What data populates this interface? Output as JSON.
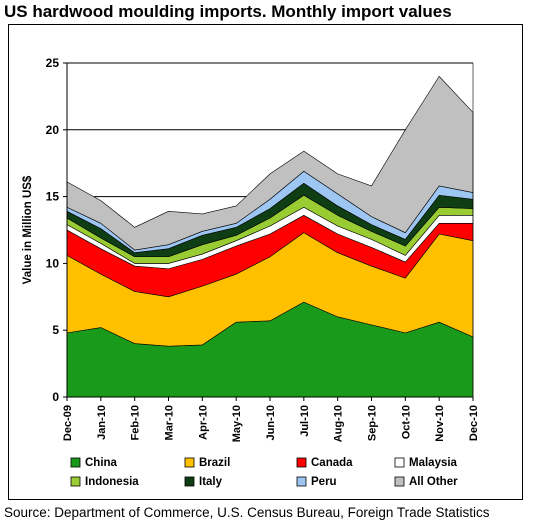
{
  "title": "US hardwood moulding imports. Monthly import values",
  "source": "Source: Department of Commerce, U.S. Census Bureau, Foreign Trade Statistics",
  "chart_data": {
    "type": "area",
    "stacked": true,
    "ylabel": "Value in Million US$",
    "xlabel": "",
    "ylim": [
      0,
      25
    ],
    "yticks": [
      0,
      5,
      10,
      15,
      20,
      25
    ],
    "grid": "horizontal major lines",
    "legend_position": "bottom",
    "categories": [
      "Dec-09",
      "Jan-10",
      "Feb-10",
      "Mar-10",
      "Apr-10",
      "May-10",
      "Jun-10",
      "Jul-10",
      "Aug-10",
      "Sep-10",
      "Oct-10",
      "Nov-10",
      "Dec-10"
    ],
    "series": [
      {
        "name": "China",
        "color": "#1a9a1a",
        "values": [
          4.8,
          5.2,
          4.0,
          3.8,
          3.9,
          5.6,
          5.7,
          7.1,
          6.0,
          5.4,
          4.8,
          5.6,
          4.5
        ]
      },
      {
        "name": "Brazil",
        "color": "#ffc000",
        "values": [
          5.8,
          4.0,
          3.9,
          3.7,
          4.4,
          3.6,
          4.8,
          5.2,
          4.8,
          4.4,
          4.1,
          6.6,
          7.2
        ]
      },
      {
        "name": "Canada",
        "color": "#ff0000",
        "values": [
          1.9,
          1.9,
          1.9,
          2.1,
          2.0,
          2.1,
          1.7,
          1.3,
          1.4,
          1.4,
          1.2,
          0.8,
          1.3
        ]
      },
      {
        "name": "Malaysia",
        "color": "#ffffff",
        "values": [
          0.4,
          0.4,
          0.2,
          0.4,
          0.4,
          0.4,
          0.6,
          0.6,
          0.6,
          0.6,
          0.5,
          0.6,
          0.6
        ]
      },
      {
        "name": "Indonesia",
        "color": "#99cc33",
        "values": [
          0.5,
          0.4,
          0.5,
          0.5,
          0.7,
          0.4,
          0.6,
          0.9,
          0.8,
          0.6,
          0.7,
          0.6,
          0.5
        ]
      },
      {
        "name": "Italy",
        "color": "#0f3d14",
        "values": [
          0.5,
          0.7,
          0.3,
          0.6,
          0.7,
          0.6,
          0.7,
          0.9,
          0.7,
          0.5,
          0.5,
          0.9,
          0.7
        ]
      },
      {
        "name": "Peru",
        "color": "#9ec6f2",
        "values": [
          0.3,
          0.4,
          0.2,
          0.3,
          0.3,
          0.3,
          0.7,
          0.9,
          0.9,
          0.6,
          0.5,
          0.7,
          0.5
        ]
      },
      {
        "name": "All Other",
        "color": "#c0c0c0",
        "values": [
          1.9,
          1.7,
          1.7,
          2.5,
          1.3,
          1.3,
          1.9,
          1.5,
          1.5,
          2.3,
          7.7,
          8.2,
          6.0
        ]
      }
    ]
  }
}
